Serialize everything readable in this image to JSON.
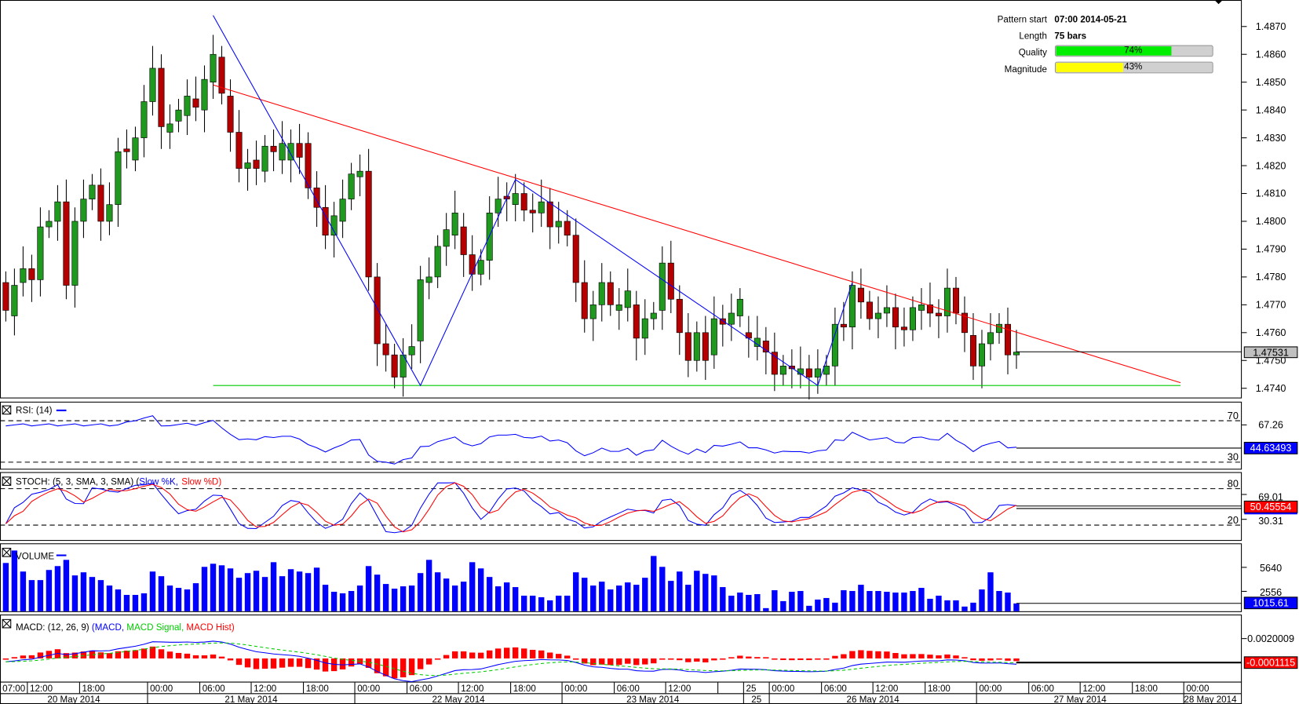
{
  "info": {
    "pattern_start_label": "Pattern start",
    "pattern_start_value": "07:00 2014-05-21",
    "length_label": "Length",
    "length_value": "75 bars",
    "quality_label": "Quality",
    "quality_value": "74%",
    "quality_pct": 74,
    "magnitude_label": "Magnitude",
    "magnitude_value": "43%",
    "magnitude_pct": 43
  },
  "colors": {
    "up": "#1f9a1f",
    "down": "#b40000",
    "quality": "#00ee00",
    "magnitude": "#ffff00",
    "pattern": "#0000ff",
    "trend": "#ff0000",
    "support": "#00cc00"
  },
  "chart_data": {
    "type": "candlestick",
    "price_axis": {
      "ticks": [
        "1.4870",
        "1.4860",
        "1.4850",
        "1.4840",
        "1.4830",
        "1.4820",
        "1.4810",
        "1.4800",
        "1.4790",
        "1.4780",
        "1.4770",
        "1.4760",
        "1.4750",
        "1.4740"
      ],
      "range": [
        1.4735,
        1.488
      ]
    },
    "current_price": "1.47531",
    "candles": [
      [
        1.4778,
        1.4768
      ],
      [
        1.4766,
        1.4777
      ],
      [
        1.4778,
        1.4783
      ],
      [
        1.4783,
        1.4779
      ],
      [
        1.4779,
        1.4798
      ],
      [
        1.4798,
        1.48
      ],
      [
        1.48,
        1.4807
      ],
      [
        1.4807,
        1.4777
      ],
      [
        1.4777,
        1.48
      ],
      [
        1.48,
        1.4808
      ],
      [
        1.4808,
        1.4813
      ],
      [
        1.4813,
        1.48
      ],
      [
        1.48,
        1.4806
      ],
      [
        1.4806,
        1.4825
      ],
      [
        1.4826,
        1.4825
      ],
      [
        1.4822,
        1.483
      ],
      [
        1.483,
        1.4843
      ],
      [
        1.4843,
        1.4855
      ],
      [
        1.4855,
        1.4834
      ],
      [
        1.4832,
        1.4835
      ],
      [
        1.4836,
        1.484
      ],
      [
        1.4838,
        1.4845
      ],
      [
        1.4844,
        1.4841
      ],
      [
        1.484,
        1.4851
      ],
      [
        1.485,
        1.486
      ],
      [
        1.4859,
        1.4846
      ],
      [
        1.4845,
        1.4832
      ],
      [
        1.4832,
        1.4819
      ],
      [
        1.4819,
        1.4821
      ],
      [
        1.4822,
        1.4819
      ],
      [
        1.4818,
        1.4827
      ],
      [
        1.4827,
        1.4825
      ],
      [
        1.4822,
        1.4828
      ],
      [
        1.4822,
        1.4828
      ],
      [
        1.4828,
        1.4823
      ],
      [
        1.4828,
        1.4812
      ],
      [
        1.4812,
        1.4805
      ],
      [
        1.4805,
        1.4795
      ],
      [
        1.4795,
        1.4802
      ],
      [
        1.48,
        1.4808
      ],
      [
        1.4808,
        1.4817
      ],
      [
        1.4816,
        1.4818
      ],
      [
        1.4818,
        1.478
      ],
      [
        1.478,
        1.4756
      ],
      [
        1.4756,
        1.4752
      ],
      [
        1.4752,
        1.4744
      ],
      [
        1.4744,
        1.4752
      ],
      [
        1.4752,
        1.4755
      ],
      [
        1.4757,
        1.4779
      ],
      [
        1.4778,
        1.478
      ],
      [
        1.478,
        1.4791
      ],
      [
        1.4791,
        1.4797
      ],
      [
        1.4795,
        1.4803
      ],
      [
        1.4798,
        1.4788
      ],
      [
        1.4788,
        1.4781
      ],
      [
        1.4781,
        1.4786
      ],
      [
        1.4786,
        1.4803
      ],
      [
        1.4803,
        1.4808
      ],
      [
        1.4809,
        1.4808
      ],
      [
        1.4806,
        1.481
      ],
      [
        1.481,
        1.4804
      ],
      [
        1.4804,
        1.4803
      ],
      [
        1.4803,
        1.4807
      ],
      [
        1.4807,
        1.4798
      ],
      [
        1.4798,
        1.48
      ],
      [
        1.48,
        1.4795
      ],
      [
        1.4795,
        1.4778
      ],
      [
        1.4778,
        1.4765
      ],
      [
        1.4765,
        1.477
      ],
      [
        1.477,
        1.4778
      ],
      [
        1.4778,
        1.477
      ],
      [
        1.4768,
        1.477
      ],
      [
        1.4769,
        1.4775
      ],
      [
        1.477,
        1.4758
      ],
      [
        1.4758,
        1.4765
      ],
      [
        1.4765,
        1.4767
      ],
      [
        1.4768,
        1.4785
      ],
      [
        1.4785,
        1.4772
      ],
      [
        1.4772,
        1.476
      ],
      [
        1.476,
        1.475
      ],
      [
        1.475,
        1.476
      ],
      [
        1.476,
        1.475
      ],
      [
        1.4752,
        1.4765
      ],
      [
        1.4765,
        1.4763
      ],
      [
        1.4763,
        1.4767
      ],
      [
        1.4766,
        1.4772
      ],
      [
        1.476,
        1.4758
      ],
      [
        1.4755,
        1.4758
      ],
      [
        1.4757,
        1.4753
      ],
      [
        1.4753,
        1.4745
      ],
      [
        1.4745,
        1.4748
      ],
      [
        1.4748,
        1.4747
      ],
      [
        1.4745,
        1.4747
      ],
      [
        1.4747,
        1.4744
      ],
      [
        1.4744,
        1.4747
      ],
      [
        1.4745,
        1.4748
      ],
      [
        1.4748,
        1.4763
      ],
      [
        1.4763,
        1.4762
      ],
      [
        1.4762,
        1.4777
      ],
      [
        1.4776,
        1.4771
      ],
      [
        1.4771,
        1.4765
      ],
      [
        1.4765,
        1.4767
      ],
      [
        1.4767,
        1.4769
      ],
      [
        1.4769,
        1.4762
      ],
      [
        1.4762,
        1.4761
      ],
      [
        1.4761,
        1.4769
      ],
      [
        1.4768,
        1.477
      ],
      [
        1.477,
        1.4767
      ],
      [
        1.4767,
        1.4766
      ],
      [
        1.4766,
        1.4776
      ],
      [
        1.4776,
        1.4767
      ],
      [
        1.4767,
        1.476
      ],
      [
        1.4759,
        1.4748
      ],
      [
        1.4748,
        1.4756
      ],
      [
        1.4756,
        1.476
      ],
      [
        1.476,
        1.4763
      ],
      [
        1.4763,
        1.4752
      ],
      [
        1.4752,
        1.4753
      ]
    ],
    "pattern_points": [
      [
        24,
        1.4874
      ],
      [
        48,
        1.4741
      ],
      [
        59,
        1.4815
      ],
      [
        94,
        1.4741
      ],
      [
        98,
        1.4778
      ]
    ],
    "resistance_line": [
      [
        24,
        1.4849
      ],
      [
        136,
        1.4742
      ]
    ],
    "support_line": [
      [
        24,
        1.4741
      ],
      [
        136,
        1.4741
      ]
    ],
    "rsi": {
      "label": "RSI: (14)",
      "levels": [
        "70",
        "30"
      ],
      "tick": "67.26",
      "current": "44.63493"
    },
    "stoch": {
      "label": "STOCH: (5, 3, SMA, 3, SMA)",
      "k_label": "Slow %K,",
      "d_label": "Slow %D)",
      "open_paren": "(",
      "levels": [
        "80",
        "20"
      ],
      "ticks": [
        "69.01",
        "30.31"
      ],
      "current": "50.45554"
    },
    "volume": {
      "label": "VOLUME",
      "ticks": [
        "5640",
        "2556"
      ],
      "current": "1015.61",
      "values": [
        6200,
        7800,
        5100,
        4000,
        4000,
        5300,
        5800,
        6600,
        4600,
        5000,
        4400,
        4000,
        3300,
        2800,
        2100,
        2100,
        2300,
        5100,
        4500,
        3300,
        3000,
        2800,
        3600,
        5700,
        6100,
        5900,
        5500,
        4300,
        4900,
        5200,
        4400,
        6300,
        4500,
        5400,
        5100,
        4900,
        5600,
        3400,
        2500,
        2300,
        2600,
        3300,
        5800,
        4700,
        3500,
        2900,
        3200,
        3300,
        4900,
        6600,
        5000,
        4200,
        3300,
        3800,
        6300,
        5500,
        4400,
        3200,
        3700,
        3100,
        2000,
        2000,
        1800,
        1400,
        2000,
        2000,
        5000,
        4300,
        3300,
        3800,
        2800,
        3300,
        3700,
        3400,
        4300,
        7100,
        5700,
        3900,
        5100,
        3400,
        5200,
        4800,
        4600,
        3100,
        2000,
        2400,
        2100,
        2200,
        400,
        2700,
        1300,
        2500,
        2600,
        700,
        1500,
        1700,
        1100,
        2700,
        2600,
        3400,
        2600,
        2600,
        2500,
        2400,
        2400,
        2600,
        3000,
        1600,
        2000,
        1400,
        1400,
        600,
        1100,
        2800,
        5000,
        2600,
        2400,
        1000
      ]
    },
    "macd": {
      "label": "MACD: (12, 26, 9)",
      "macd_label": "(MACD,",
      "signal_label": "MACD Signal,",
      "hist_label": "MACD Hist)",
      "tick": "0.0020009",
      "current": "-0.0001115"
    },
    "time_axis": {
      "hours": [
        "07:00",
        "12:00",
        "18:00",
        "00:00",
        "06:00",
        "12:00",
        "18:00",
        "00:00",
        "06:00",
        "12:00",
        "18:00",
        "00:00",
        "06:00",
        "12:00",
        "",
        "25",
        "00:00",
        "06:00",
        "12:00",
        "18:00",
        "00:00",
        "06:00",
        "12:00",
        "18:00",
        "00:00"
      ],
      "dates": [
        "20 May 2014",
        "21 May 2014",
        "22 May 2014",
        "23 May 2014",
        "25",
        "26 May 2014",
        "27 May 2014",
        "28 May 2014"
      ]
    }
  }
}
